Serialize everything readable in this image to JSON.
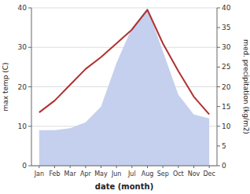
{
  "chart_data": {
    "type": "line",
    "xlabel": "date (month)",
    "ylabel": "max temp (C)",
    "y2label": "med. precipitation (kg/m2)",
    "categories": [
      "Jan",
      "Feb",
      "Mar",
      "Apr",
      "May",
      "Jun",
      "Jul",
      "Aug",
      "Sep",
      "Oct",
      "Nov",
      "Dec"
    ],
    "series": [
      {
        "type": "area",
        "axis": "y2",
        "color": "#c5d0ee",
        "values": [
          9,
          9,
          9.5,
          11,
          15,
          26,
          35,
          40,
          29,
          18,
          13,
          12
        ]
      },
      {
        "type": "line",
        "color": "#b03030",
        "values": [
          13.5,
          16.5,
          20.5,
          24.5,
          27.5,
          31.0,
          34.5,
          39.5,
          31.0,
          24.0,
          17.5,
          13.0
        ]
      }
    ],
    "ylim": [
      0,
      40
    ],
    "yticks": [
      0,
      10,
      20,
      30,
      40
    ],
    "y2lim": [
      0,
      40
    ],
    "y2ticks": [
      0,
      5,
      10,
      15,
      20,
      25,
      30,
      35,
      40
    ],
    "grid": true
  }
}
